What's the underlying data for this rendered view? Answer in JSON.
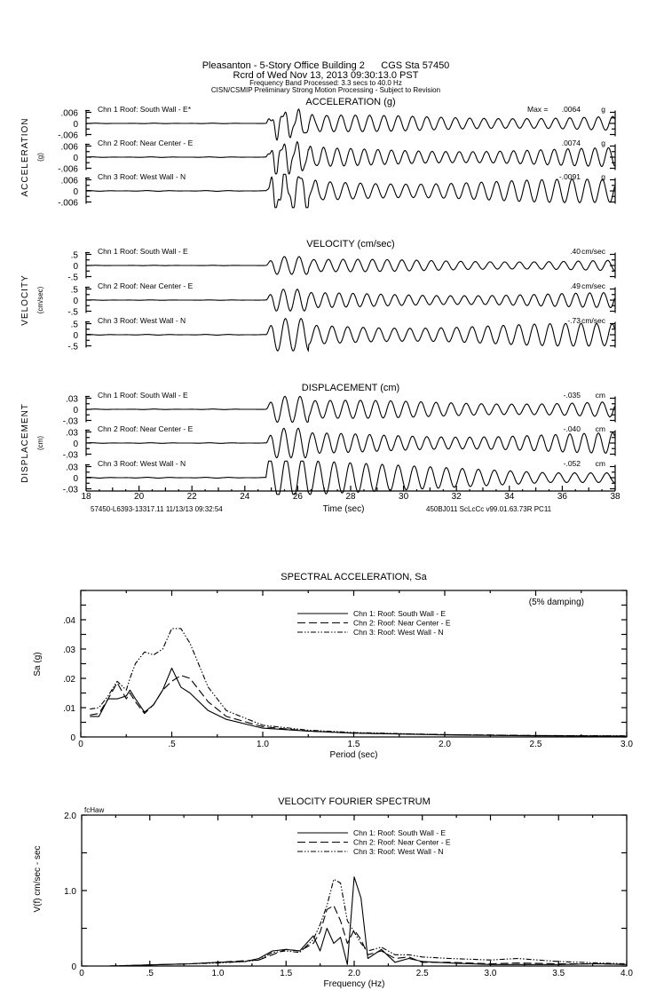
{
  "header": {
    "line1": "Pleasanton - 5-Story Office Building 2      CGS Sta 57450",
    "line2": "Rcrd of Wed Nov 13, 2013 09:30:13.0 PST",
    "line3": "Frequency Band Processed: 3.3 secs to 40.0 Hz",
    "line4": "CISN/CSMIP Preliminary Strong Motion Processing - Subject to Revision"
  },
  "chart_data": [
    {
      "type": "line",
      "id": "acceleration",
      "title": "ACCELERATION (g)",
      "ylabel": "ACCELERATION",
      "yunit": "(g)",
      "xlim": [
        18,
        38
      ],
      "ticks": [
        ".006",
        "0",
        "-.006"
      ],
      "scale": 0.006,
      "channels": [
        {
          "label": "Chn 1  Roof: South Wall - E*",
          "max_prefix": "Max =",
          "max": ".0064",
          "unit": "g",
          "max_value": 0.0064
        },
        {
          "label": "Chn 2  Roof: Near Center - E",
          "max": ".0074",
          "unit": "g",
          "max_value": 0.0074
        },
        {
          "label": "Chn 3  Roof: West Wall - N",
          "max": "-.0091",
          "unit": "g",
          "max_value": -0.0091
        }
      ]
    },
    {
      "type": "line",
      "id": "velocity",
      "title": "VELOCITY (cm/sec)",
      "ylabel": "VELOCITY",
      "yunit": "(cm/sec)",
      "xlim": [
        18,
        38
      ],
      "ticks": [
        ".5",
        "0",
        "-.5"
      ],
      "scale": 0.5,
      "channels": [
        {
          "label": "Chn 1  Roof: South Wall - E",
          "max": ".40",
          "unit": "cm/sec",
          "max_value": 0.4
        },
        {
          "label": "Chn 2  Roof: Near Center - E",
          "max": ".49",
          "unit": "cm/sec",
          "max_value": 0.49
        },
        {
          "label": "Chn 3  Roof: West Wall - N",
          "max": "-.73",
          "unit": "cm/sec",
          "max_value": -0.73
        }
      ]
    },
    {
      "type": "line",
      "id": "displacement",
      "title": "DISPLACEMENT (cm)",
      "ylabel": "DISPLACEMENT",
      "yunit": "(cm)",
      "xlim": [
        18,
        38
      ],
      "ticks": [
        ".03",
        "0",
        "-.03"
      ],
      "scale": 0.03,
      "xlabel": "Time (sec)",
      "xticks": [
        "18",
        "20",
        "22",
        "24",
        "26",
        "28",
        "30",
        "32",
        "34",
        "36",
        "38"
      ],
      "footer_left": "57450-L6393-13317.11 11/13/13 09:32:54",
      "footer_right": "450BJ011   ScLcCc   v99.01.63.73R PC11",
      "channels": [
        {
          "label": "Chn 1  Roof: South Wall - E",
          "max": "-.035",
          "unit": "cm",
          "max_value": -0.035
        },
        {
          "label": "Chn 2  Roof: Near Center - E",
          "max": "-.040",
          "unit": "cm",
          "max_value": -0.04
        },
        {
          "label": "Chn 3  Roof: West Wall - N",
          "max": "-.052",
          "unit": "cm",
          "max_value": -0.052
        }
      ]
    },
    {
      "type": "line",
      "id": "spectral",
      "title": "SPECTRAL ACCELERATION, Sa",
      "xlabel": "Period (sec)",
      "ylabel": "Sa  (g)",
      "note": "(5% damping)",
      "xlim": [
        0,
        3.0
      ],
      "ylim": [
        0,
        0.05
      ],
      "xticks": [
        "0",
        ".5",
        "1.0",
        "1.5",
        "2.0",
        "2.5",
        "3.0"
      ],
      "yticks": [
        "0",
        ".01",
        ".02",
        ".03",
        ".04"
      ],
      "x": [
        0.05,
        0.1,
        0.15,
        0.2,
        0.25,
        0.27,
        0.3,
        0.35,
        0.4,
        0.45,
        0.5,
        0.55,
        0.6,
        0.7,
        0.8,
        1.0,
        1.25,
        1.5,
        2.0,
        2.5,
        3.0
      ],
      "series": [
        {
          "name": "Chn 1: Roof: South Wall - E",
          "style": "solid",
          "values": [
            0.007,
            0.007,
            0.013,
            0.013,
            0.014,
            0.016,
            0.013,
            0.0085,
            0.011,
            0.016,
            0.0235,
            0.017,
            0.015,
            0.009,
            0.006,
            0.003,
            0.002,
            0.0013,
            0.0007,
            0.0004,
            0.0003
          ]
        },
        {
          "name": "Chn 2: Roof: Near Center - E",
          "style": "dashed",
          "values": [
            0.0075,
            0.008,
            0.013,
            0.0185,
            0.013,
            0.015,
            0.012,
            0.008,
            0.011,
            0.016,
            0.019,
            0.021,
            0.02,
            0.012,
            0.007,
            0.0035,
            0.002,
            0.0013,
            0.0008,
            0.0005,
            0.0003
          ]
        },
        {
          "name": "Chn 3: Roof: West Wall - N",
          "style": "dashdot",
          "values": [
            0.0095,
            0.01,
            0.014,
            0.019,
            0.016,
            0.02,
            0.025,
            0.029,
            0.028,
            0.03,
            0.037,
            0.037,
            0.032,
            0.017,
            0.009,
            0.004,
            0.0023,
            0.0015,
            0.0008,
            0.0005,
            0.0004
          ]
        }
      ]
    },
    {
      "type": "line",
      "id": "fourier",
      "title": "VELOCITY FOURIER SPECTRUM",
      "xlabel": "Frequency (Hz)",
      "ylabel": "V(f)    cm/sec - sec",
      "corner_label": "fcHaw",
      "xlim": [
        0,
        4.0
      ],
      "ylim": [
        0,
        2.0
      ],
      "xticks": [
        "0",
        ".5",
        "1.0",
        "1.5",
        "2.0",
        "2.5",
        "3.0",
        "3.5",
        "4.0"
      ],
      "yticks": [
        "0",
        "1.0",
        "2.0"
      ],
      "x": [
        0.2,
        0.4,
        0.6,
        0.8,
        1.0,
        1.2,
        1.3,
        1.4,
        1.5,
        1.6,
        1.7,
        1.75,
        1.8,
        1.85,
        1.9,
        1.95,
        2.0,
        2.05,
        2.1,
        2.2,
        2.3,
        2.4,
        2.5,
        2.7,
        3.0,
        3.2,
        3.5,
        3.8,
        4.0
      ],
      "series": [
        {
          "name": "Chn 1: Roof: South Wall - E",
          "style": "solid",
          "values": [
            0,
            0.01,
            0.02,
            0.03,
            0.05,
            0.06,
            0.1,
            0.2,
            0.22,
            0.2,
            0.4,
            0.2,
            0.5,
            0.3,
            0.38,
            0.02,
            1.18,
            0.9,
            0.1,
            0.22,
            0.05,
            0.1,
            0.06,
            0.04,
            0.02,
            0.02,
            0.02,
            0.03,
            0.02
          ]
        },
        {
          "name": "Chn 2: Roof: Near Center - E",
          "style": "dashed",
          "values": [
            0,
            0.01,
            0.02,
            0.03,
            0.05,
            0.07,
            0.08,
            0.15,
            0.22,
            0.2,
            0.3,
            0.45,
            0.75,
            0.8,
            0.6,
            0.3,
            0.48,
            0.35,
            0.15,
            0.2,
            0.1,
            0.12,
            0.05,
            0.05,
            0.03,
            0.04,
            0.03,
            0.03,
            0.02
          ]
        },
        {
          "name": "Chn 3: Roof: West Wall - N",
          "style": "dashdot",
          "values": [
            0,
            0.01,
            0.02,
            0.03,
            0.04,
            0.06,
            0.08,
            0.18,
            0.2,
            0.18,
            0.35,
            0.55,
            0.8,
            1.15,
            1.1,
            0.6,
            0.45,
            0.3,
            0.2,
            0.25,
            0.15,
            0.15,
            0.12,
            0.1,
            0.08,
            0.1,
            0.06,
            0.04,
            0.03
          ]
        }
      ]
    }
  ]
}
